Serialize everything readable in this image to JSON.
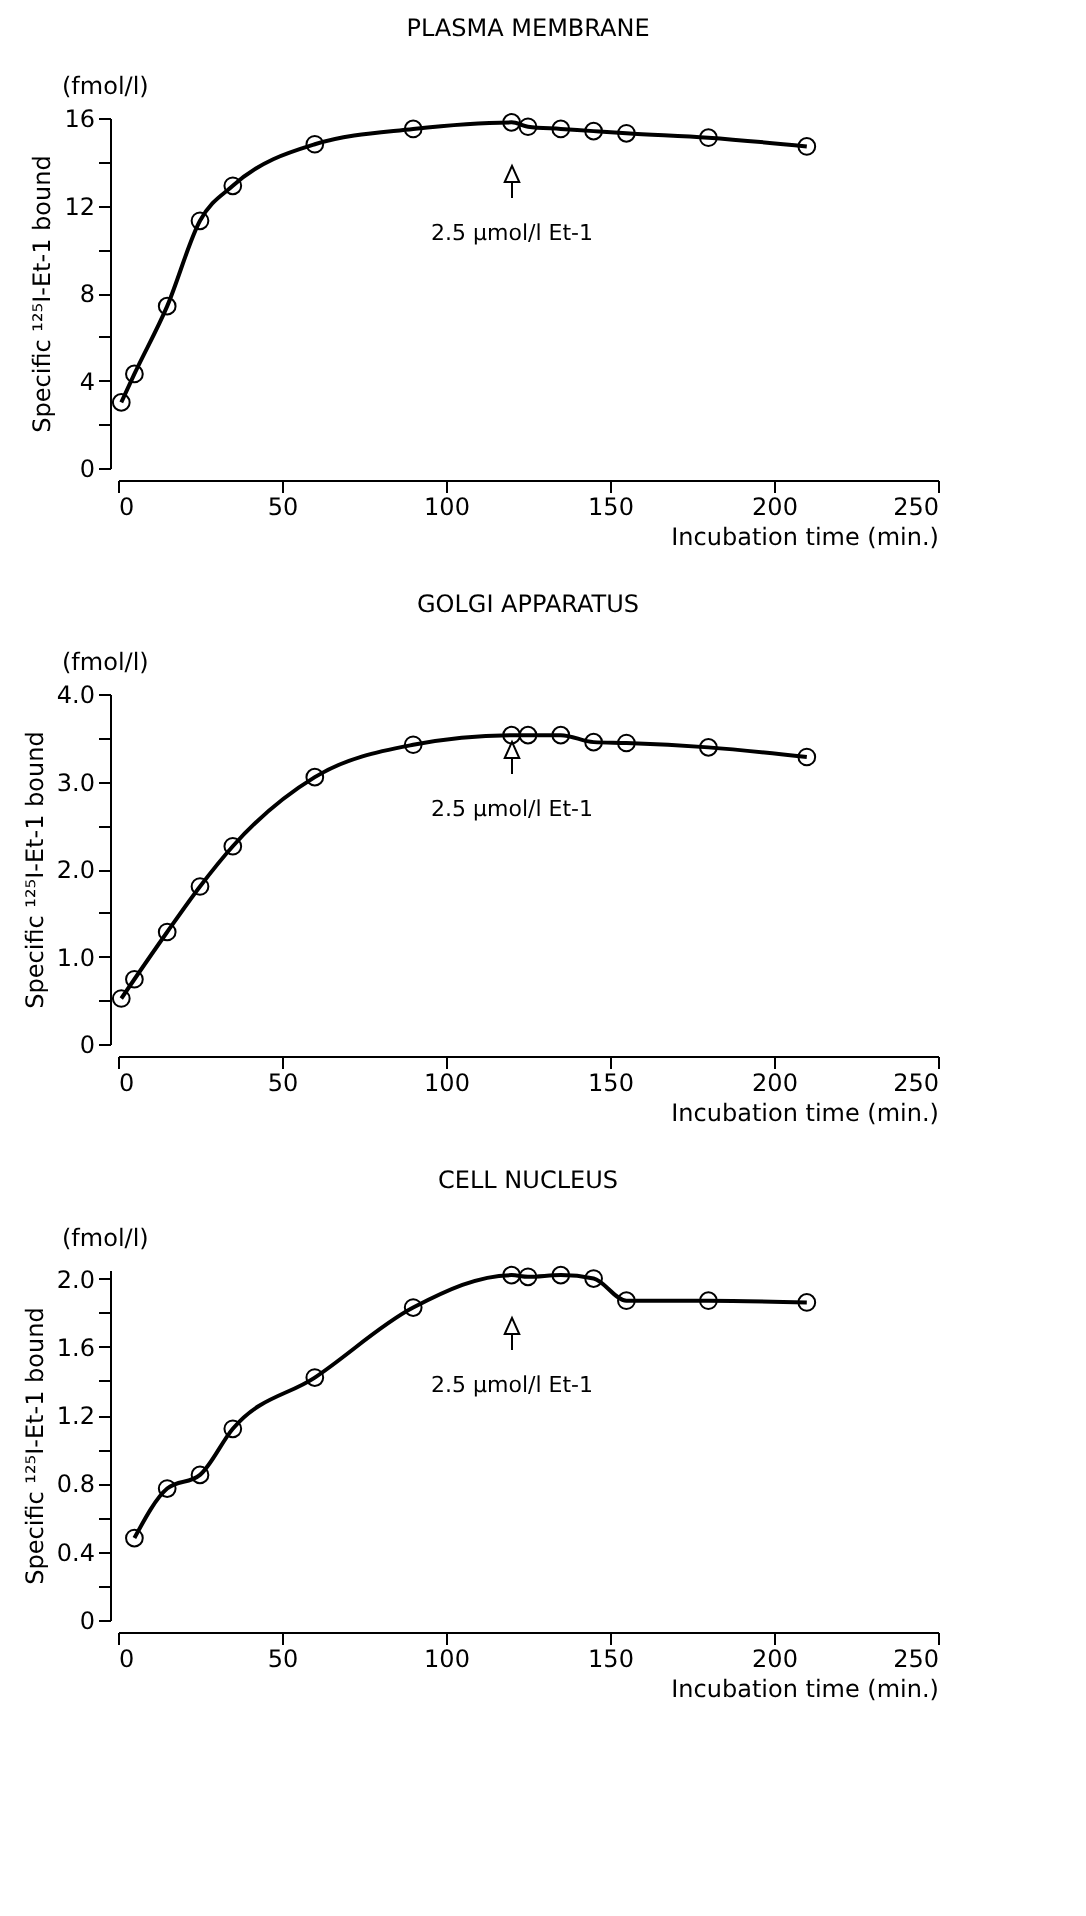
{
  "chart_data": [
    {
      "type": "line",
      "title": "PLASMA MEMBRANE",
      "xlabel": "Incubation time (min.)",
      "ylabel": "Specific ¹²⁵I-Et-1 bound",
      "annotations": [
        "(fmol/l)",
        "2.5 µmol/l Et-1"
      ],
      "color": "#000000",
      "marker": "circle",
      "x": [
        1,
        5,
        15,
        25,
        35,
        60,
        90,
        120,
        125,
        135,
        145,
        155,
        180,
        210
      ],
      "values": [
        3.0,
        4.3,
        7.4,
        11.3,
        12.9,
        14.8,
        15.5,
        15.8,
        15.6,
        15.5,
        15.4,
        15.3,
        15.1,
        14.7
      ],
      "xlim": [
        0,
        250
      ],
      "xticks": [
        0,
        50,
        100,
        150,
        200,
        250
      ],
      "ylim": [
        0,
        16
      ],
      "yticks": [
        0,
        {
          "value": 2,
          "label": null
        },
        4,
        {
          "value": 6,
          "label": null
        },
        8,
        {
          "value": 10,
          "label": null
        },
        12,
        {
          "value": 14,
          "label": null
        },
        16
      ]
    },
    {
      "type": "line",
      "title": "GOLGI APPARATUS",
      "xlabel": "Incubation time (min.)",
      "ylabel": "Specific ¹²⁵I-Et-1 bound",
      "annotations": [
        "(fmol/l)",
        "2.5 µmol/l Et-1"
      ],
      "color": "#000000",
      "marker": "circle",
      "x": [
        1,
        5,
        15,
        25,
        35,
        60,
        90,
        120,
        125,
        135,
        145,
        155,
        180,
        210
      ],
      "values": [
        0.52,
        0.74,
        1.28,
        1.8,
        2.26,
        3.05,
        3.42,
        3.53,
        3.53,
        3.53,
        3.45,
        3.44,
        3.39,
        3.28
      ],
      "xlim": [
        0,
        250
      ],
      "xticks": [
        0,
        50,
        100,
        150,
        200,
        250
      ],
      "ylim": [
        0,
        4
      ],
      "yticks": [
        0,
        {
          "value": 0.5,
          "label": null
        },
        {
          "value": 1,
          "label": "1.0"
        },
        {
          "value": 1.5,
          "label": null
        },
        {
          "value": 2,
          "label": "2.0"
        },
        {
          "value": 2.5,
          "label": null
        },
        {
          "value": 3,
          "label": "3.0"
        },
        {
          "value": 3.5,
          "label": null
        },
        {
          "value": 4,
          "label": "4.0"
        }
      ]
    },
    {
      "type": "line",
      "title": "CELL NUCLEUS",
      "xlabel": "Incubation time (min.)",
      "ylabel": "Specific ¹²⁵I-Et-1 bound",
      "annotations": [
        "(fmol/l)",
        "2.5 µmol/l Et-1"
      ],
      "color": "#000000",
      "marker": "circle",
      "x": [
        5,
        15,
        25,
        35,
        60,
        90,
        120,
        125,
        135,
        145,
        155,
        180,
        210
      ],
      "values": [
        0.48,
        0.77,
        0.85,
        1.12,
        1.42,
        1.83,
        2.02,
        2.01,
        2.02,
        2.0,
        1.87,
        1.87,
        1.86
      ],
      "xlim": [
        0,
        250
      ],
      "xticks": [
        0,
        50,
        100,
        150,
        200,
        250
      ],
      "ylim": [
        0,
        2.05
      ],
      "yticks": [
        0,
        {
          "value": 0.2,
          "label": null
        },
        0.4,
        {
          "value": 0.6,
          "label": null
        },
        0.8,
        {
          "value": 1,
          "label": null
        },
        1.2,
        {
          "value": 1.4,
          "label": null
        },
        1.6,
        {
          "value": 1.8,
          "label": null
        },
        {
          "value": 2,
          "label": "2.0"
        }
      ]
    }
  ]
}
